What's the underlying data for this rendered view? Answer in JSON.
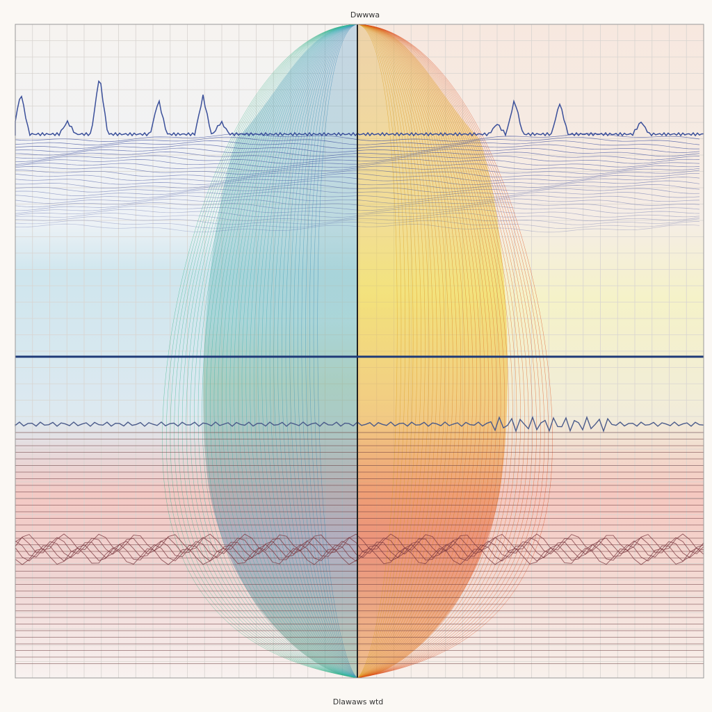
{
  "title": "Dwwwa",
  "x_axis_label": "Dlawaws wtd"
}
